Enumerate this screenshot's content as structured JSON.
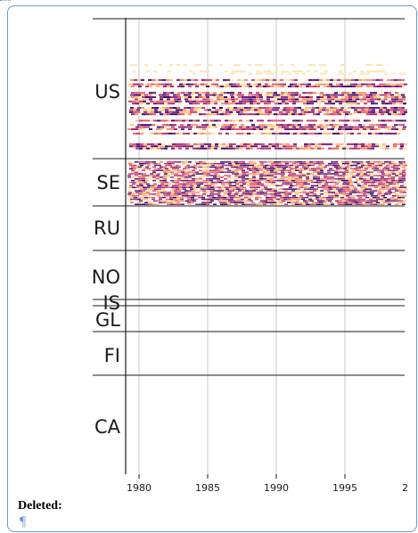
{
  "figure": {
    "countries": [
      "US",
      "SE",
      "RU",
      "NO",
      "IS",
      "GL",
      "FI",
      "CA"
    ],
    "x_ticks": [
      "1980",
      "1985",
      "1990",
      "1995",
      "2"
    ]
  },
  "comment": {
    "deleted_label": "Deleted:",
    "pilcrow": "¶"
  },
  "colors": {
    "frame": "#6b9ad8",
    "heat_dark": "#3b0f70",
    "heat_mid": "#c83e73",
    "heat_light": "#fcbf76"
  }
}
